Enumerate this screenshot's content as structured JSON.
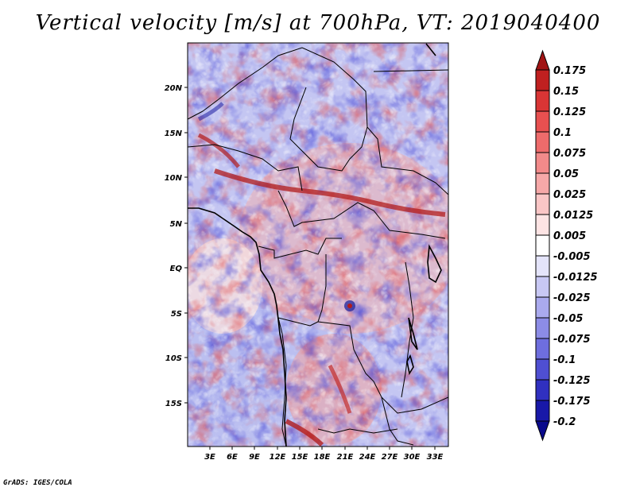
{
  "title": "Vertical velocity [m/s] at 700hPa, VT: 2019040400",
  "footer": "GrADS: IGES/COLA",
  "map": {
    "lat_labels": [
      "20N",
      "15N",
      "10N",
      "5N",
      "EQ",
      "5S",
      "10S",
      "15S"
    ],
    "lon_labels": [
      "3E",
      "6E",
      "9E",
      "12E",
      "15E",
      "18E",
      "21E",
      "24E",
      "27E",
      "30E",
      "33E"
    ]
  },
  "colorbar": {
    "labels": [
      "0.175",
      "0.15",
      "0.125",
      "0.1",
      "0.075",
      "0.05",
      "0.025",
      "0.0125",
      "0.005",
      "-0.005",
      "-0.0125",
      "-0.025",
      "-0.05",
      "-0.075",
      "-0.1",
      "-0.125",
      "-0.175",
      "-0.2"
    ],
    "colors": [
      "#a11414",
      "#c02020",
      "#d93535",
      "#e85050",
      "#ee6b6b",
      "#f28a8a",
      "#f6a8a8",
      "#fac6c6",
      "#fde4e4",
      "#ffffff",
      "#e4e4fa",
      "#c8c8f4",
      "#aaaaee",
      "#8c8ce6",
      "#6e6ede",
      "#4f4fd2",
      "#3030c0",
      "#1818a8",
      "#0a0a8c"
    ],
    "top_arrow_color": "#a11414",
    "bottom_arrow_color": "#0a0a8c"
  }
}
